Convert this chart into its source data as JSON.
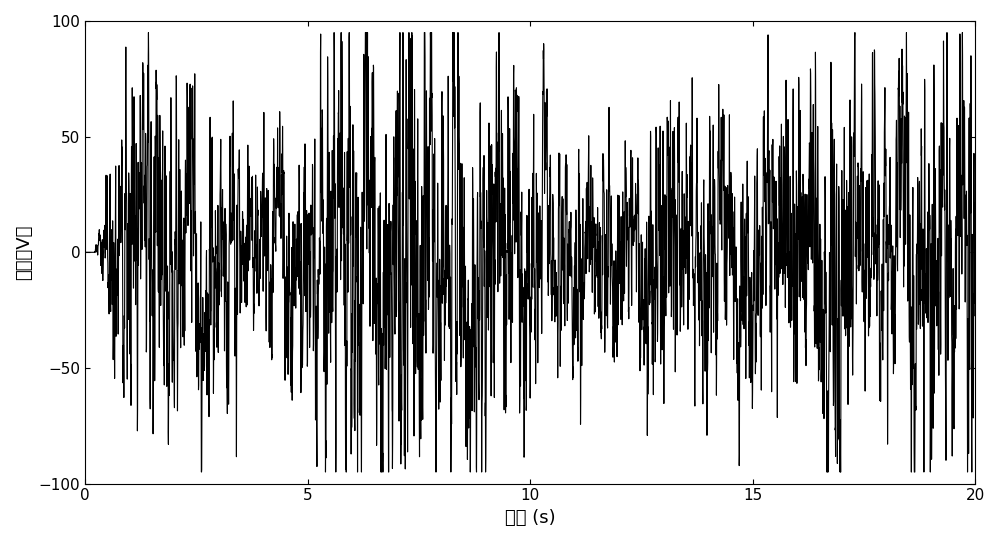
{
  "title": "",
  "xlabel": "时间 (s)",
  "ylabel": "电压（V）",
  "xlim": [
    0,
    20
  ],
  "ylim": [
    -100,
    100
  ],
  "xticks": [
    0,
    5,
    10,
    15,
    20
  ],
  "yticks": [
    -100,
    -50,
    0,
    50,
    100
  ],
  "line_color": "#000000",
  "line_width": 0.8,
  "background_color": "#ffffff",
  "seed": 42,
  "num_points": 5000,
  "xlabel_fontsize": 13,
  "ylabel_fontsize": 13,
  "tick_fontsize": 11,
  "fig_width": 10.0,
  "fig_height": 5.42
}
